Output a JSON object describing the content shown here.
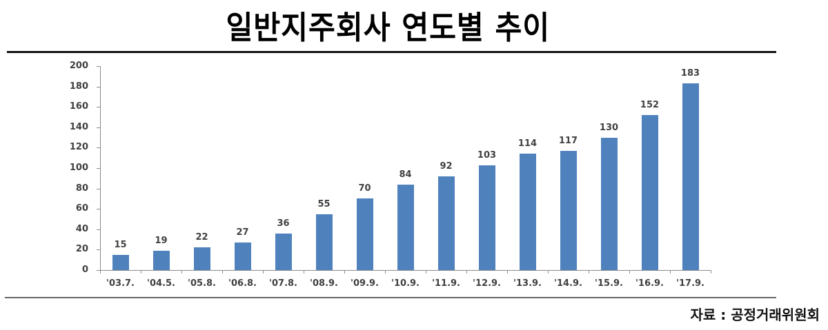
{
  "header": {
    "title": "일반지주회사 연도별 추이"
  },
  "footer": {
    "source": "자료 : 공정거래위원회"
  },
  "chart_data": {
    "type": "bar",
    "title": "일반지주회사 연도별 추이",
    "xlabel": "",
    "ylabel": "",
    "categories": [
      "'03.7.",
      "'04.5.",
      "'05.8.",
      "'06.8.",
      "'07.8.",
      "'08.9.",
      "'09.9.",
      "'10.9.",
      "'11.9.",
      "'12.9.",
      "'13.9.",
      "'14.9.",
      "'15.9.",
      "'16.9.",
      "'17.9."
    ],
    "values": [
      15,
      19,
      22,
      27,
      36,
      55,
      70,
      84,
      92,
      103,
      114,
      117,
      130,
      152,
      183
    ],
    "ylim": [
      0,
      200
    ],
    "yticks": [
      0,
      20,
      40,
      60,
      80,
      100,
      120,
      140,
      160,
      180,
      200
    ],
    "grid": false,
    "legend": null,
    "data_labels": true,
    "bar_color": "#4F81BD",
    "source": "자료 : 공정거래위원회"
  }
}
